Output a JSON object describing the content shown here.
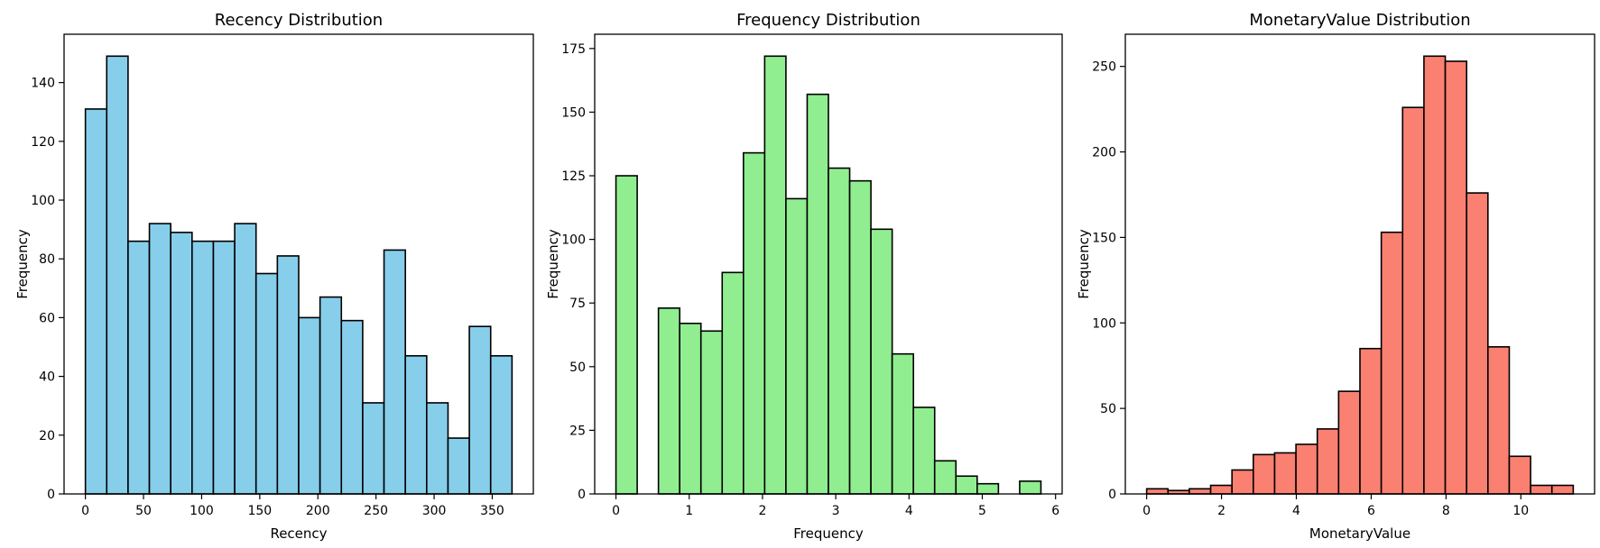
{
  "chart_data": [
    {
      "type": "bar",
      "title": "Recency Distribution",
      "xlabel": "Recency",
      "ylabel": "Frequency",
      "color": "#87CEEB",
      "bins": [
        {
          "x0": 0,
          "x1": 18.35,
          "count": 131
        },
        {
          "x0": 18.35,
          "x1": 36.7,
          "count": 149
        },
        {
          "x0": 36.7,
          "x1": 55.05,
          "count": 86
        },
        {
          "x0": 55.05,
          "x1": 73.4,
          "count": 92
        },
        {
          "x0": 73.4,
          "x1": 91.75,
          "count": 89
        },
        {
          "x0": 91.75,
          "x1": 110.1,
          "count": 86
        },
        {
          "x0": 110.1,
          "x1": 128.45,
          "count": 86
        },
        {
          "x0": 128.45,
          "x1": 146.8,
          "count": 92
        },
        {
          "x0": 146.8,
          "x1": 165.15,
          "count": 75
        },
        {
          "x0": 165.15,
          "x1": 183.5,
          "count": 81
        },
        {
          "x0": 183.5,
          "x1": 201.85,
          "count": 60
        },
        {
          "x0": 201.85,
          "x1": 220.2,
          "count": 67
        },
        {
          "x0": 220.2,
          "x1": 238.55,
          "count": 59
        },
        {
          "x0": 238.55,
          "x1": 256.9,
          "count": 31
        },
        {
          "x0": 256.9,
          "x1": 275.25,
          "count": 83
        },
        {
          "x0": 275.25,
          "x1": 293.6,
          "count": 47
        },
        {
          "x0": 293.6,
          "x1": 311.95,
          "count": 31
        },
        {
          "x0": 311.95,
          "x1": 330.3,
          "count": 19
        },
        {
          "x0": 330.3,
          "x1": 348.65,
          "count": 57
        },
        {
          "x0": 348.65,
          "x1": 367.0,
          "count": 47
        }
      ],
      "xlim": [
        -18.35,
        385.35
      ],
      "ylim": [
        0,
        156.45
      ],
      "xticks": [
        0,
        50,
        100,
        150,
        200,
        250,
        300,
        350
      ],
      "yticks": [
        0,
        20,
        40,
        60,
        80,
        100,
        120,
        140
      ]
    },
    {
      "type": "bar",
      "title": "Frequency Distribution",
      "xlabel": "Frequency",
      "ylabel": "Frequency",
      "color": "#90EE90",
      "bins": [
        {
          "x0": 0,
          "x1": 0.29,
          "count": 125
        },
        {
          "x0": 0.29,
          "x1": 0.58,
          "count": 0
        },
        {
          "x0": 0.58,
          "x1": 0.87,
          "count": 73
        },
        {
          "x0": 0.87,
          "x1": 1.16,
          "count": 67
        },
        {
          "x0": 1.16,
          "x1": 1.45,
          "count": 64
        },
        {
          "x0": 1.45,
          "x1": 1.74,
          "count": 87
        },
        {
          "x0": 1.74,
          "x1": 2.03,
          "count": 134
        },
        {
          "x0": 2.03,
          "x1": 2.32,
          "count": 172
        },
        {
          "x0": 2.32,
          "x1": 2.61,
          "count": 116
        },
        {
          "x0": 2.61,
          "x1": 2.9,
          "count": 157
        },
        {
          "x0": 2.9,
          "x1": 3.19,
          "count": 128
        },
        {
          "x0": 3.19,
          "x1": 3.48,
          "count": 123
        },
        {
          "x0": 3.48,
          "x1": 3.77,
          "count": 104
        },
        {
          "x0": 3.77,
          "x1": 4.06,
          "count": 55
        },
        {
          "x0": 4.06,
          "x1": 4.35,
          "count": 34
        },
        {
          "x0": 4.35,
          "x1": 4.64,
          "count": 13
        },
        {
          "x0": 4.64,
          "x1": 4.93,
          "count": 7
        },
        {
          "x0": 4.93,
          "x1": 5.22,
          "count": 4
        },
        {
          "x0": 5.22,
          "x1": 5.51,
          "count": 0
        },
        {
          "x0": 5.51,
          "x1": 5.8,
          "count": 5
        }
      ],
      "xlim": [
        -0.29,
        6.09
      ],
      "ylim": [
        0,
        180.6
      ],
      "xticks": [
        0,
        1,
        2,
        3,
        4,
        5,
        6
      ],
      "yticks": [
        0,
        25,
        50,
        75,
        100,
        125,
        150,
        175
      ]
    },
    {
      "type": "bar",
      "title": "MonetaryValue Distribution",
      "xlabel": "MonetaryValue",
      "ylabel": "Frequency",
      "color": "#FA8072",
      "bins": [
        {
          "x0": 0,
          "x1": 0.57,
          "count": 3
        },
        {
          "x0": 0.57,
          "x1": 1.14,
          "count": 2
        },
        {
          "x0": 1.14,
          "x1": 1.71,
          "count": 3
        },
        {
          "x0": 1.71,
          "x1": 2.28,
          "count": 5
        },
        {
          "x0": 2.28,
          "x1": 2.85,
          "count": 14
        },
        {
          "x0": 2.85,
          "x1": 3.42,
          "count": 23
        },
        {
          "x0": 3.42,
          "x1": 3.99,
          "count": 24
        },
        {
          "x0": 3.99,
          "x1": 4.56,
          "count": 29
        },
        {
          "x0": 4.56,
          "x1": 5.13,
          "count": 38
        },
        {
          "x0": 5.13,
          "x1": 5.7,
          "count": 60
        },
        {
          "x0": 5.7,
          "x1": 6.27,
          "count": 85
        },
        {
          "x0": 6.27,
          "x1": 6.84,
          "count": 153
        },
        {
          "x0": 6.84,
          "x1": 7.41,
          "count": 226
        },
        {
          "x0": 7.41,
          "x1": 7.98,
          "count": 256
        },
        {
          "x0": 7.98,
          "x1": 8.55,
          "count": 253
        },
        {
          "x0": 8.55,
          "x1": 9.12,
          "count": 176
        },
        {
          "x0": 9.12,
          "x1": 9.69,
          "count": 86
        },
        {
          "x0": 9.69,
          "x1": 10.26,
          "count": 22
        },
        {
          "x0": 10.26,
          "x1": 10.83,
          "count": 5
        },
        {
          "x0": 10.83,
          "x1": 11.4,
          "count": 5
        }
      ],
      "xlim": [
        -0.57,
        11.97
      ],
      "ylim": [
        0,
        268.8
      ],
      "xticks": [
        0,
        2,
        4,
        6,
        8,
        10
      ],
      "yticks": [
        0,
        50,
        100,
        150,
        200,
        250
      ]
    }
  ]
}
